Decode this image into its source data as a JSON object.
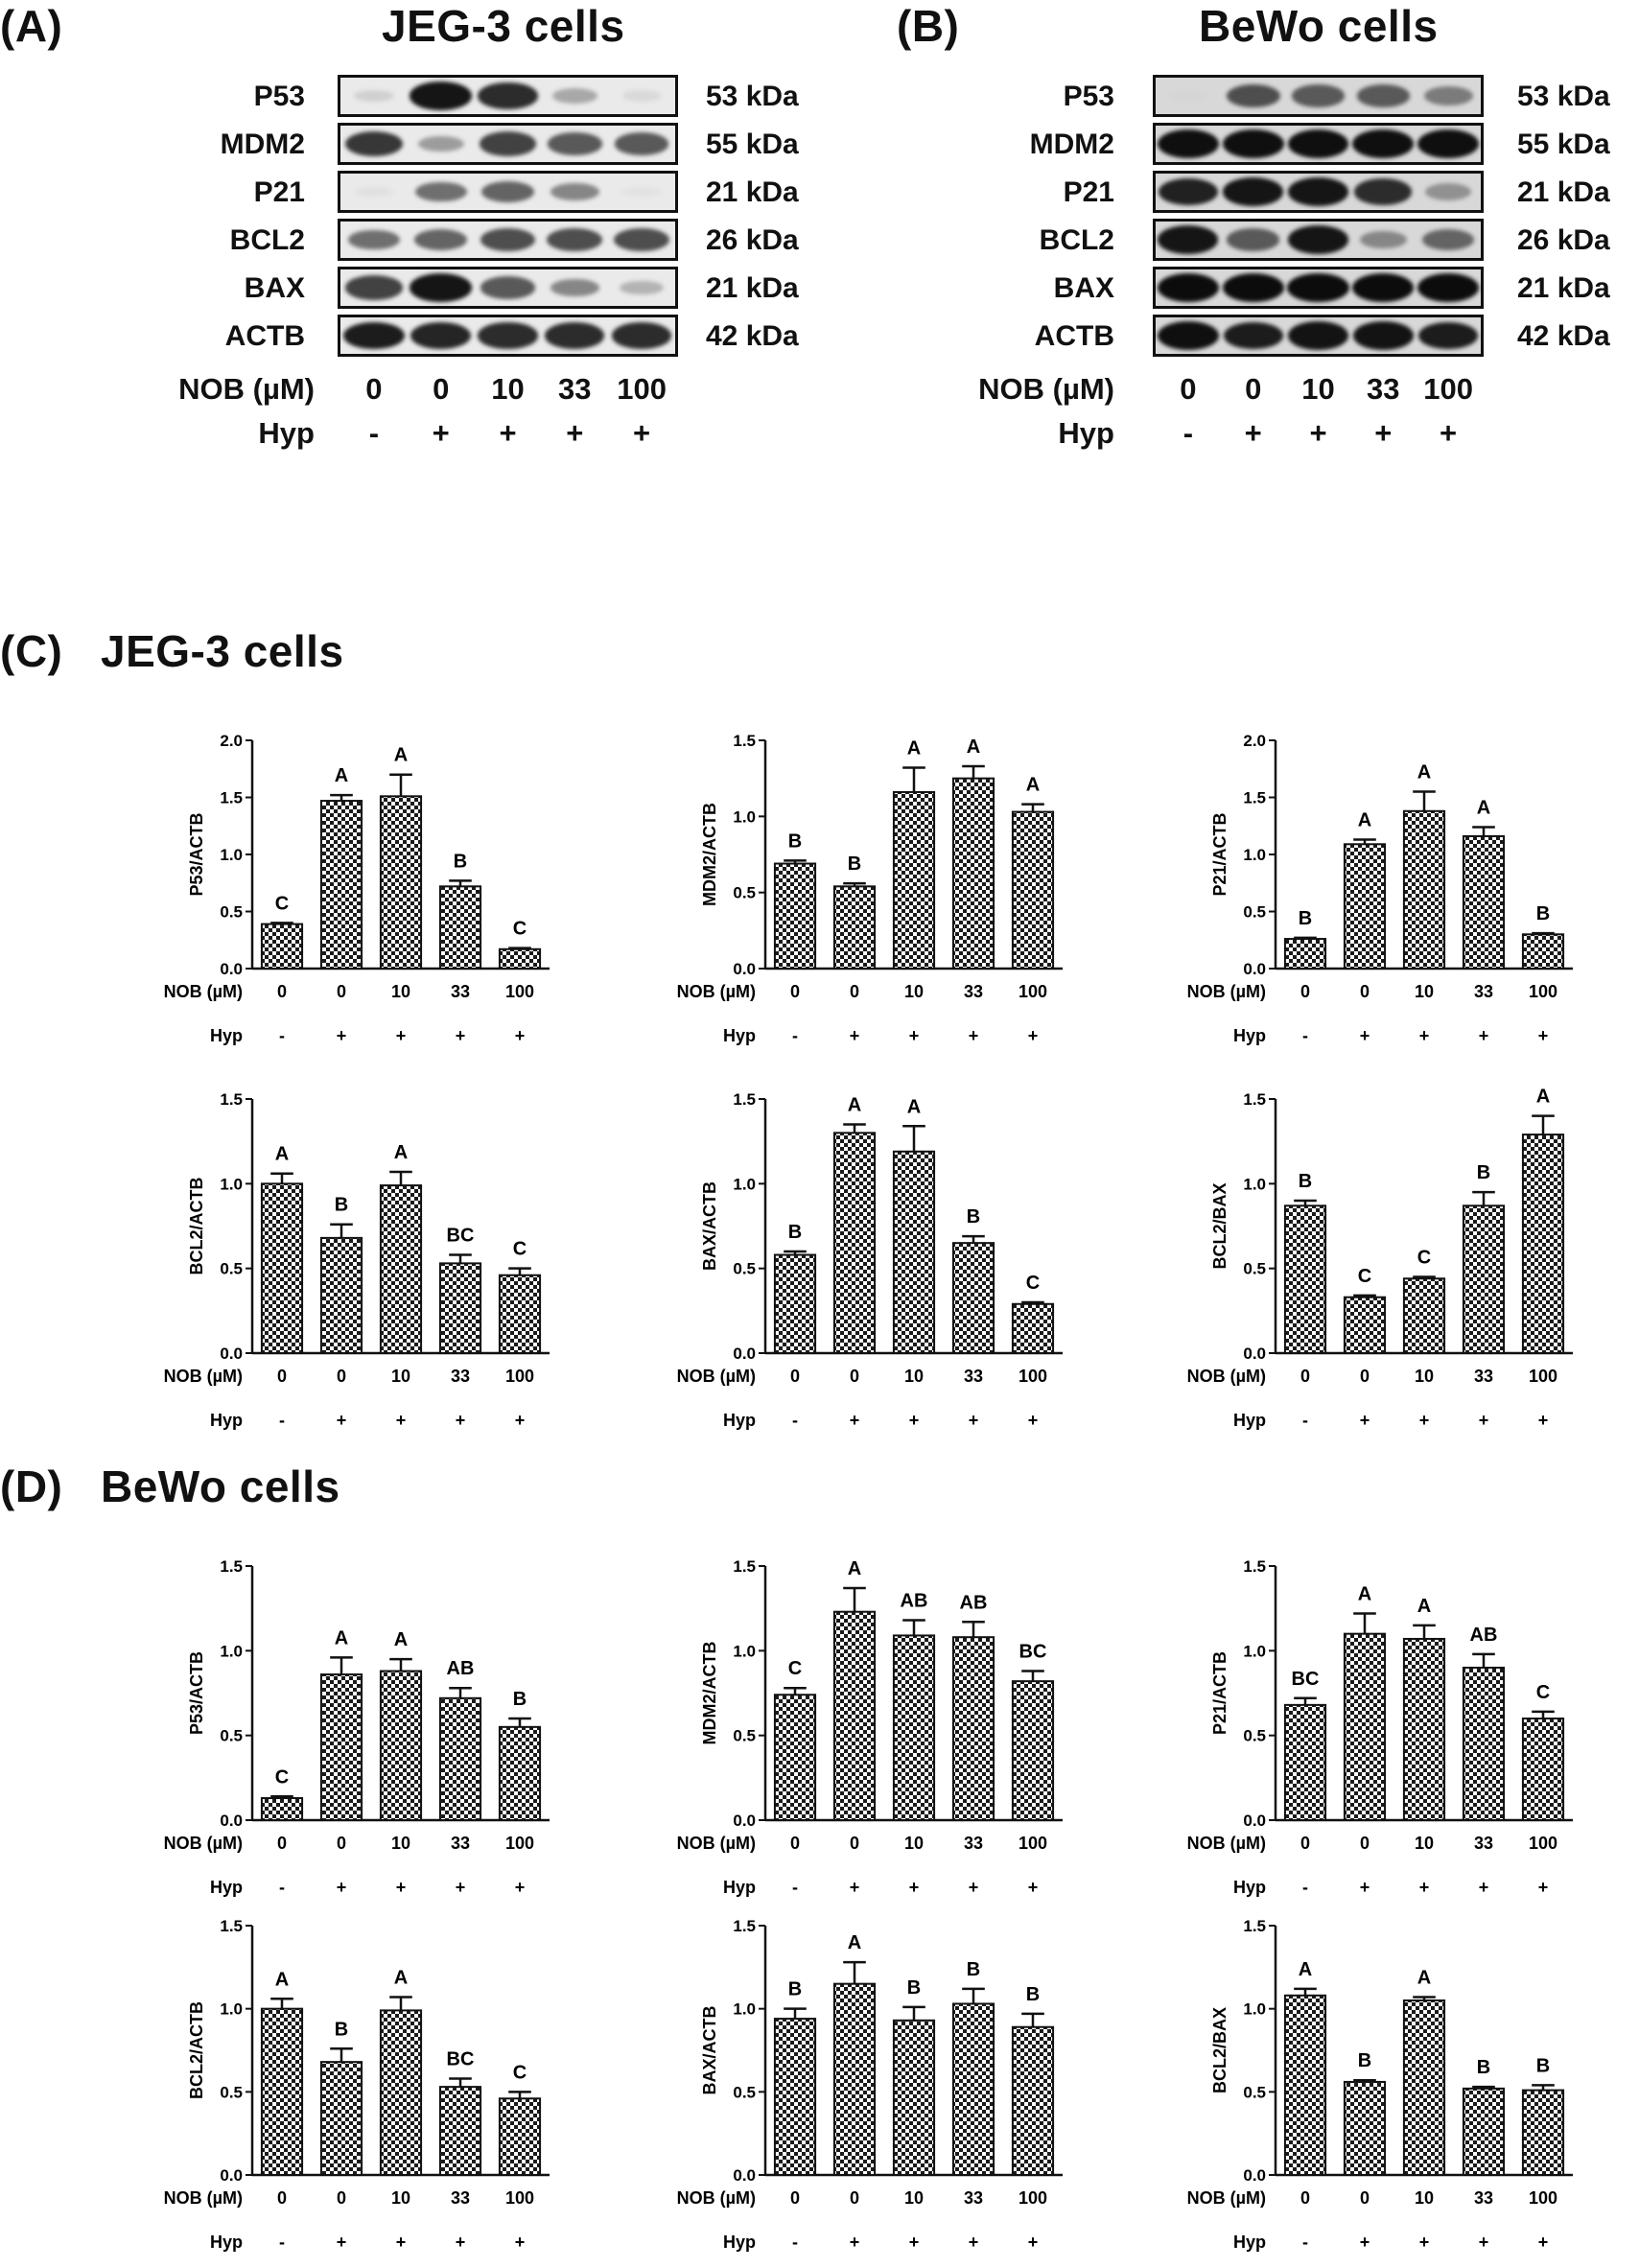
{
  "panels": {
    "a": {
      "letter": "(A)",
      "title": "JEG-3 cells"
    },
    "b": {
      "letter": "(B)",
      "title": "BeWo cells"
    },
    "c": {
      "letter": "(C)",
      "title": "JEG-3 cells"
    },
    "d": {
      "letter": "(D)",
      "title": "BeWo cells"
    }
  },
  "blots": {
    "rows": [
      {
        "protein": "P53",
        "kda": "53 kDa"
      },
      {
        "protein": "MDM2",
        "kda": "55 kDa"
      },
      {
        "protein": "P21",
        "kda": "21 kDa"
      },
      {
        "protein": "BCL2",
        "kda": "26 kDa"
      },
      {
        "protein": "BAX",
        "kda": "21 kDa"
      },
      {
        "protein": "ACTB",
        "kda": "42 kDa"
      }
    ],
    "nob_label": "NOB (µM)",
    "hyp_label": "Hyp",
    "nob_values": [
      "0",
      "0",
      "10",
      "33",
      "100"
    ],
    "hyp_values": [
      "-",
      "+",
      "+",
      "+",
      "+"
    ],
    "jeg3_intensity": [
      [
        0.12,
        0.95,
        0.85,
        0.3,
        0.08
      ],
      [
        0.8,
        0.35,
        0.75,
        0.65,
        0.65
      ],
      [
        0.05,
        0.55,
        0.6,
        0.45,
        0.04
      ],
      [
        0.55,
        0.6,
        0.7,
        0.7,
        0.7
      ],
      [
        0.75,
        0.95,
        0.65,
        0.45,
        0.25
      ],
      [
        0.92,
        0.88,
        0.85,
        0.85,
        0.85
      ]
    ],
    "bewo_intensity": [
      [
        0.1,
        0.7,
        0.65,
        0.65,
        0.5
      ],
      [
        0.98,
        0.98,
        0.98,
        0.98,
        0.98
      ],
      [
        0.9,
        0.95,
        0.95,
        0.85,
        0.4
      ],
      [
        0.95,
        0.65,
        0.95,
        0.45,
        0.6
      ],
      [
        0.99,
        0.99,
        0.99,
        0.99,
        0.99
      ],
      [
        0.98,
        0.92,
        0.96,
        0.96,
        0.92
      ]
    ]
  },
  "chart_data": [
    {
      "type": "bar",
      "panel": "C",
      "ylabel": "P53/ACTB",
      "ylim": [
        0,
        2.0
      ],
      "yticks": [
        "0.0",
        "0.5",
        "1.0",
        "1.5",
        "2.0"
      ],
      "categories": [
        "0",
        "0",
        "10",
        "33",
        "100"
      ],
      "hyp": [
        "-",
        "+",
        "+",
        "+",
        "+"
      ],
      "values": [
        0.39,
        1.47,
        1.51,
        0.72,
        0.17
      ],
      "errors": [
        0.01,
        0.05,
        0.19,
        0.05,
        0.01
      ],
      "letters": [
        "C",
        "A",
        "A",
        "B",
        "C"
      ],
      "xlabel_nob": "NOB (µM)",
      "xlabel_hyp": "Hyp"
    },
    {
      "type": "bar",
      "panel": "C",
      "ylabel": "MDM2/ACTB",
      "ylim": [
        0,
        1.5
      ],
      "yticks": [
        "0.0",
        "0.5",
        "1.0",
        "1.5"
      ],
      "categories": [
        "0",
        "0",
        "10",
        "33",
        "100"
      ],
      "hyp": [
        "-",
        "+",
        "+",
        "+",
        "+"
      ],
      "values": [
        0.69,
        0.54,
        1.16,
        1.25,
        1.03
      ],
      "errors": [
        0.02,
        0.02,
        0.16,
        0.08,
        0.05
      ],
      "letters": [
        "B",
        "B",
        "A",
        "A",
        "A"
      ],
      "xlabel_nob": "NOB (µM)",
      "xlabel_hyp": "Hyp"
    },
    {
      "type": "bar",
      "panel": "C",
      "ylabel": "P21/ACTB",
      "ylim": [
        0,
        2.0
      ],
      "yticks": [
        "0.0",
        "0.5",
        "1.0",
        "1.5",
        "2.0"
      ],
      "categories": [
        "0",
        "0",
        "10",
        "33",
        "100"
      ],
      "hyp": [
        "-",
        "+",
        "+",
        "+",
        "+"
      ],
      "values": [
        0.26,
        1.09,
        1.38,
        1.16,
        0.3
      ],
      "errors": [
        0.01,
        0.04,
        0.17,
        0.08,
        0.01
      ],
      "letters": [
        "B",
        "A",
        "A",
        "A",
        "B"
      ],
      "xlabel_nob": "NOB (µM)",
      "xlabel_hyp": "Hyp"
    },
    {
      "type": "bar",
      "panel": "C",
      "ylabel": "BCL2/ACTB",
      "ylim": [
        0,
        1.5
      ],
      "yticks": [
        "0.0",
        "0.5",
        "1.0",
        "1.5"
      ],
      "categories": [
        "0",
        "0",
        "10",
        "33",
        "100"
      ],
      "hyp": [
        "-",
        "+",
        "+",
        "+",
        "+"
      ],
      "values": [
        1.0,
        0.68,
        0.99,
        0.53,
        0.46
      ],
      "errors": [
        0.06,
        0.08,
        0.08,
        0.05,
        0.04
      ],
      "letters": [
        "A",
        "B",
        "A",
        "BC",
        "C"
      ],
      "xlabel_nob": "NOB (µM)",
      "xlabel_hyp": "Hyp"
    },
    {
      "type": "bar",
      "panel": "C",
      "ylabel": "BAX/ACTB",
      "ylim": [
        0,
        1.5
      ],
      "yticks": [
        "0.0",
        "0.5",
        "1.0",
        "1.5"
      ],
      "categories": [
        "0",
        "0",
        "10",
        "33",
        "100"
      ],
      "hyp": [
        "-",
        "+",
        "+",
        "+",
        "+"
      ],
      "values": [
        0.58,
        1.3,
        1.19,
        0.65,
        0.29
      ],
      "errors": [
        0.02,
        0.05,
        0.15,
        0.04,
        0.01
      ],
      "letters": [
        "B",
        "A",
        "A",
        "B",
        "C"
      ],
      "xlabel_nob": "NOB (µM)",
      "xlabel_hyp": "Hyp"
    },
    {
      "type": "bar",
      "panel": "C",
      "ylabel": "BCL2/BAX",
      "ylim": [
        0,
        1.5
      ],
      "yticks": [
        "0.0",
        "0.5",
        "1.0",
        "1.5"
      ],
      "categories": [
        "0",
        "0",
        "10",
        "33",
        "100"
      ],
      "hyp": [
        "-",
        "+",
        "+",
        "+",
        "+"
      ],
      "values": [
        0.87,
        0.33,
        0.44,
        0.87,
        1.29
      ],
      "errors": [
        0.03,
        0.01,
        0.01,
        0.08,
        0.11
      ],
      "letters": [
        "B",
        "C",
        "C",
        "B",
        "A"
      ],
      "xlabel_nob": "NOB (µM)",
      "xlabel_hyp": "Hyp"
    },
    {
      "type": "bar",
      "panel": "D",
      "ylabel": "P53/ACTB",
      "ylim": [
        0,
        1.5
      ],
      "yticks": [
        "0.0",
        "0.5",
        "1.0",
        "1.5"
      ],
      "categories": [
        "0",
        "0",
        "10",
        "33",
        "100"
      ],
      "hyp": [
        "-",
        "+",
        "+",
        "+",
        "+"
      ],
      "values": [
        0.13,
        0.86,
        0.88,
        0.72,
        0.55
      ],
      "errors": [
        0.01,
        0.1,
        0.07,
        0.06,
        0.05
      ],
      "letters": [
        "C",
        "A",
        "A",
        "AB",
        "B"
      ],
      "xlabel_nob": "NOB (µM)",
      "xlabel_hyp": "Hyp"
    },
    {
      "type": "bar",
      "panel": "D",
      "ylabel": "MDM2/ACTB",
      "ylim": [
        0,
        1.5
      ],
      "yticks": [
        "0.0",
        "0.5",
        "1.0",
        "1.5"
      ],
      "categories": [
        "0",
        "0",
        "10",
        "33",
        "100"
      ],
      "hyp": [
        "-",
        "+",
        "+",
        "+",
        "+"
      ],
      "values": [
        0.74,
        1.23,
        1.09,
        1.08,
        0.82
      ],
      "errors": [
        0.04,
        0.14,
        0.09,
        0.09,
        0.06
      ],
      "letters": [
        "C",
        "A",
        "AB",
        "AB",
        "BC"
      ],
      "xlabel_nob": "NOB (µM)",
      "xlabel_hyp": "Hyp"
    },
    {
      "type": "bar",
      "panel": "D",
      "ylabel": "P21/ACTB",
      "ylim": [
        0,
        1.5
      ],
      "yticks": [
        "0.0",
        "0.5",
        "1.0",
        "1.5"
      ],
      "categories": [
        "0",
        "0",
        "10",
        "33",
        "100"
      ],
      "hyp": [
        "-",
        "+",
        "+",
        "+",
        "+"
      ],
      "values": [
        0.68,
        1.1,
        1.07,
        0.9,
        0.6
      ],
      "errors": [
        0.04,
        0.12,
        0.08,
        0.08,
        0.04
      ],
      "letters": [
        "BC",
        "A",
        "A",
        "AB",
        "C"
      ],
      "xlabel_nob": "NOB (µM)",
      "xlabel_hyp": "Hyp"
    },
    {
      "type": "bar",
      "panel": "D",
      "ylabel": "BCL2/ACTB",
      "ylim": [
        0,
        1.5
      ],
      "yticks": [
        "0.0",
        "0.5",
        "1.0",
        "1.5"
      ],
      "categories": [
        "0",
        "0",
        "10",
        "33",
        "100"
      ],
      "hyp": [
        "-",
        "+",
        "+",
        "+",
        "+"
      ],
      "values": [
        1.0,
        0.68,
        0.99,
        0.53,
        0.46
      ],
      "errors": [
        0.06,
        0.08,
        0.08,
        0.05,
        0.04
      ],
      "letters": [
        "A",
        "B",
        "A",
        "BC",
        "C"
      ],
      "xlabel_nob": "NOB (µM)",
      "xlabel_hyp": "Hyp"
    },
    {
      "type": "bar",
      "panel": "D",
      "ylabel": "BAX/ACTB",
      "ylim": [
        0,
        1.5
      ],
      "yticks": [
        "0.0",
        "0.5",
        "1.0",
        "1.5"
      ],
      "categories": [
        "0",
        "0",
        "10",
        "33",
        "100"
      ],
      "hyp": [
        "-",
        "+",
        "+",
        "+",
        "+"
      ],
      "values": [
        0.94,
        1.15,
        0.93,
        1.03,
        0.89
      ],
      "errors": [
        0.06,
        0.13,
        0.08,
        0.09,
        0.08
      ],
      "letters": [
        "B",
        "A",
        "B",
        "B",
        "B"
      ],
      "xlabel_nob": "NOB (µM)",
      "xlabel_hyp": "Hyp"
    },
    {
      "type": "bar",
      "panel": "D",
      "ylabel": "BCL2/BAX",
      "ylim": [
        0,
        1.5
      ],
      "yticks": [
        "0.0",
        "0.5",
        "1.0",
        "1.5"
      ],
      "categories": [
        "0",
        "0",
        "10",
        "33",
        "100"
      ],
      "hyp": [
        "-",
        "+",
        "+",
        "+",
        "+"
      ],
      "values": [
        1.08,
        0.56,
        1.05,
        0.52,
        0.51
      ],
      "errors": [
        0.04,
        0.01,
        0.02,
        0.01,
        0.03
      ],
      "letters": [
        "A",
        "B",
        "A",
        "B",
        "B"
      ],
      "xlabel_nob": "NOB (µM)",
      "xlabel_hyp": "Hyp"
    }
  ]
}
